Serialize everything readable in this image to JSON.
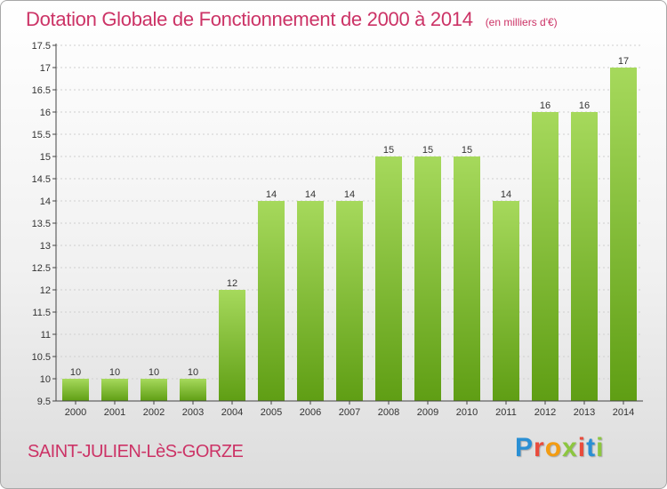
{
  "title": "Dotation Globale de Fonctionnement de 2000 à 2014",
  "units": "(en milliers d'€)",
  "commune": "SAINT-JULIEN-LèS-GORZE",
  "brand": [
    "P",
    "r",
    "o",
    "x",
    "i",
    "t",
    "i"
  ],
  "colors": {
    "bar_light": "#a6d95c",
    "bar_dark": "#5f9e14",
    "title": "#cc3366"
  },
  "chart_data": {
    "type": "bar",
    "title": "Dotation Globale de Fonctionnement de 2000 à 2014",
    "ylabel": "(en milliers d'€)",
    "categories": [
      "2000",
      "2001",
      "2002",
      "2003",
      "2004",
      "2005",
      "2006",
      "2007",
      "2008",
      "2009",
      "2010",
      "2011",
      "2012",
      "2013",
      "2014"
    ],
    "values": [
      10,
      10,
      10,
      10,
      12,
      14,
      14,
      14,
      15,
      15,
      15,
      14,
      16,
      16,
      17
    ],
    "data_labels": [
      "10",
      "10",
      "10",
      "10",
      "12",
      "14",
      "14",
      "14",
      "15",
      "15",
      "15",
      "14",
      "16",
      "16",
      "17"
    ],
    "ylim": [
      9.5,
      17.5
    ],
    "yticks": [
      9.5,
      10,
      10.5,
      11,
      11.5,
      12,
      12.5,
      13,
      13.5,
      14,
      14.5,
      15,
      15.5,
      16,
      16.5,
      17,
      17.5
    ],
    "ytick_labels": [
      "9.5",
      "10",
      "10.5",
      "11",
      "11.5",
      "12",
      "12.5",
      "13",
      "13.5",
      "14",
      "14.5",
      "15",
      "15.5",
      "16",
      "16.5",
      "17",
      "17.5"
    ]
  }
}
